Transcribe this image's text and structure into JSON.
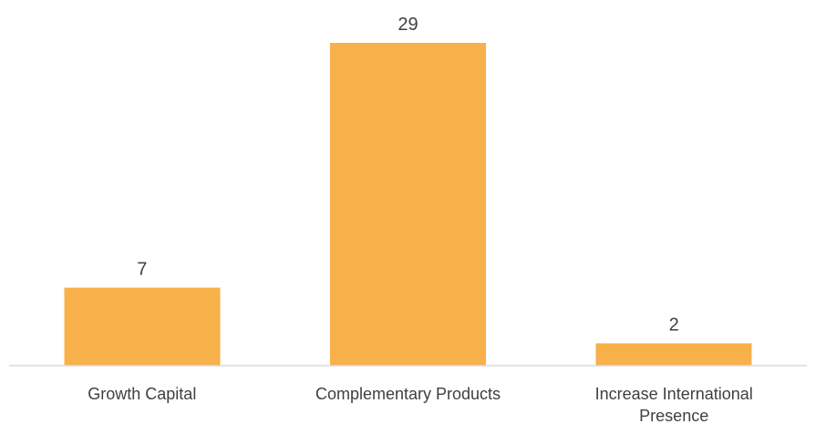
{
  "colors": {
    "bar": "#F8B04A",
    "axis": "#D9D9D9",
    "text": "#404040"
  },
  "chart_data": {
    "type": "bar",
    "title": "",
    "xlabel": "",
    "ylabel": "",
    "ylim": [
      0,
      29
    ],
    "grid": false,
    "categories": [
      [
        "Growth Capital"
      ],
      [
        "Complementary Products"
      ],
      [
        "Increase International",
        "Presence"
      ]
    ],
    "values": [
      7,
      29,
      2
    ],
    "data_labels": [
      "7",
      "29",
      "2"
    ]
  }
}
